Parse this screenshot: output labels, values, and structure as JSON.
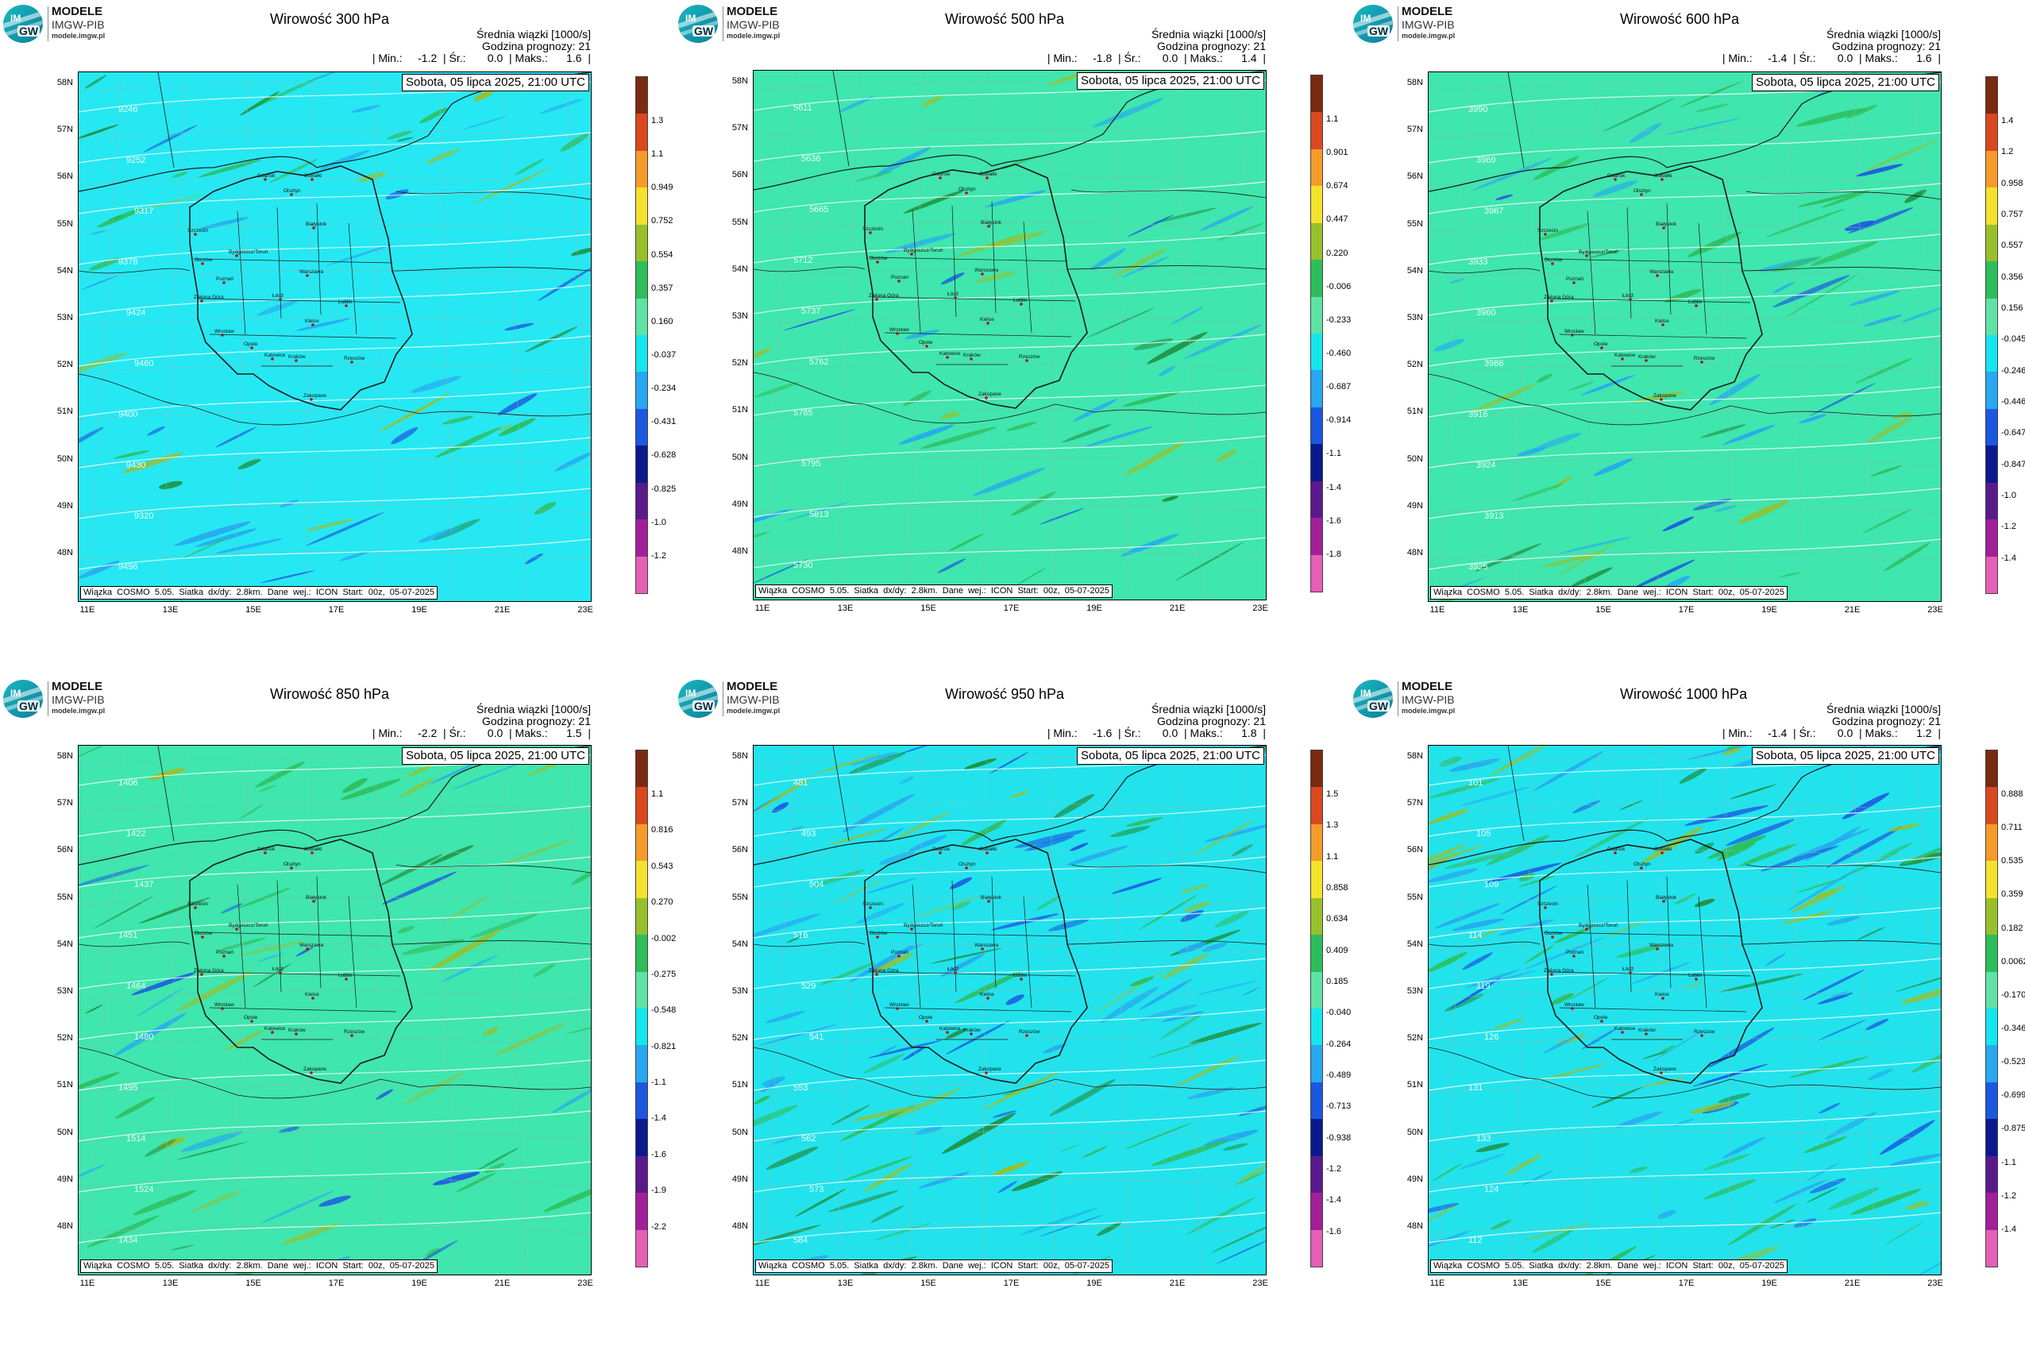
{
  "logo": {
    "mark_top": "IM",
    "mark_bottom": "GW",
    "line1": "MODELE",
    "line2": "IMGW-PIB",
    "line3": "modele.imgw.pl"
  },
  "common": {
    "header_line1": "Średnia wiązki [1000/s]",
    "header_line2": "Godzina prognozy: 21",
    "date": "Sobota, 05 lipca 2025, 21:00 UTC",
    "footer": "Wiązka  COSMO  5.05.  Siatka  dx/dy:  2.8km.  Dane  wej.:  ICON  Start:  00z,  05-07-2025",
    "lat_labels": [
      "58N",
      "57N",
      "56N",
      "55N",
      "54N",
      "53N",
      "52N",
      "51N",
      "50N",
      "49N",
      "48N"
    ],
    "lon_labels": [
      "11E",
      "13E",
      "15E",
      "17E",
      "19E",
      "21E",
      "23E"
    ]
  },
  "cities": [
    "Gdańsk",
    "Olsztyn",
    "Suwałki",
    "Białystok",
    "Szczecin",
    "Bydgoszcz/Toruń",
    "Gorzów",
    "Poznań",
    "Warszawa",
    "Zielona Góra",
    "Łódź",
    "Lublin",
    "Wrocław",
    "Kielce",
    "Opole",
    "Katowice",
    "Kraków",
    "Rzeszów",
    "Zakopane"
  ],
  "palette": {
    "low_pink": "#e55fb5",
    "magenta": "#a21f9a",
    "purple": "#5a1a8c",
    "navy": "#0a1a8c",
    "blue": "#1c57e0",
    "sky": "#27a8f0",
    "cyan": "#14e6ee",
    "teal_green": "#3be8a8",
    "mint": "#5fe3a5",
    "green": "#2ebd5b",
    "dark_green": "#1f8f3f",
    "olive": "#98c02a",
    "yellow": "#f5e22c",
    "orange": "#f59b2a",
    "red": "#d9481e",
    "brown": "#7a2a10"
  },
  "panels": [
    {
      "title": "Wirowość 300 hPa",
      "stats": "| Min.:     -1.2  | Śr.:       0.0  | Maks.:      1.6  |",
      "background": "#26e8f2",
      "scale": [
        "1.3",
        "1.1",
        "0.949",
        "0.752",
        "0.554",
        "0.357",
        "0.160",
        "-0.037",
        "-0.234",
        "-0.431",
        "-0.628",
        "-0.825",
        "-1.0",
        "-1.2"
      ],
      "contours": [
        "9246",
        "9252",
        "9317",
        "9378",
        "9424",
        "9460",
        "9400",
        "9430",
        "9320",
        "9496"
      ]
    },
    {
      "title": "Wirowość 500 hPa",
      "stats": "| Min.:     -1.8  | Śr.:       0.0  | Maks.:      1.4  |",
      "background": "#3fe6ad",
      "scale": [
        "1.1",
        "0.901",
        "0.674",
        "0.447",
        "0.220",
        "-0.006",
        "-0.233",
        "-0.460",
        "-0.687",
        "-0.914",
        "-1.1",
        "-1.4",
        "-1.6",
        "-1.8"
      ],
      "contours": [
        "5611",
        "5636",
        "5665",
        "5712",
        "5737",
        "5762",
        "5785",
        "5795",
        "5813",
        "5730"
      ]
    },
    {
      "title": "Wirowość 600 hPa",
      "stats": "| Min.:     -1.4  | Śr.:       0.0  | Maks.:      1.6  |",
      "background": "#3fe6ad",
      "scale": [
        "1.4",
        "1.2",
        "0.958",
        "0.757",
        "0.557",
        "0.356",
        "0.156",
        "-0.045",
        "-0.246",
        "-0.446",
        "-0.647",
        "-0.847",
        "-1.0",
        "-1.2",
        "-1.4"
      ],
      "contours": [
        "3990",
        "3969",
        "3967",
        "3933",
        "3960",
        "3986",
        "3916",
        "3924",
        "3913",
        "3925"
      ]
    },
    {
      "title": "Wirowość 850 hPa",
      "stats": "| Min.:     -2.2  | Śr.:       0.0  | Maks.:      1.5  |",
      "background": "#3fe6ad",
      "scale": [
        "1.1",
        "0.816",
        "0.543",
        "0.270",
        "-0.002",
        "-0.275",
        "-0.548",
        "-0.821",
        "-1.1",
        "-1.4",
        "-1.6",
        "-1.9",
        "-2.2"
      ],
      "contours": [
        "1406",
        "1422",
        "1437",
        "1451",
        "1464",
        "1480",
        "1495",
        "1514",
        "1524",
        "1434"
      ]
    },
    {
      "title": "Wirowość 950 hPa",
      "stats": "| Min.:     -1.6  | Śr.:       0.0  | Maks.:      1.8  |",
      "background": "#22e3ec",
      "scale": [
        "1.5",
        "1.3",
        "1.1",
        "0.858",
        "0.634",
        "0.409",
        "0.185",
        "-0.040",
        "-0.264",
        "-0.489",
        "-0.713",
        "-0.938",
        "-1.2",
        "-1.4",
        "-1.6"
      ],
      "contours": [
        "481",
        "493",
        "504",
        "516",
        "529",
        "541",
        "553",
        "562",
        "573",
        "584"
      ]
    },
    {
      "title": "Wirowość 1000 hPa",
      "stats": "| Min.:     -1.4  | Śr.:       0.0  | Maks.:      1.2  |",
      "background": "#22e3ec",
      "scale": [
        "0.888",
        "0.711",
        "0.535",
        "0.359",
        "0.182",
        "0.0062",
        "-0.170",
        "-0.346",
        "-0.523",
        "-0.699",
        "-0.875",
        "-1.1",
        "-1.2",
        "-1.4"
      ],
      "contours": [
        "101",
        "105",
        "109",
        "114",
        "119",
        "126",
        "131",
        "133",
        "124",
        "112"
      ]
    }
  ]
}
